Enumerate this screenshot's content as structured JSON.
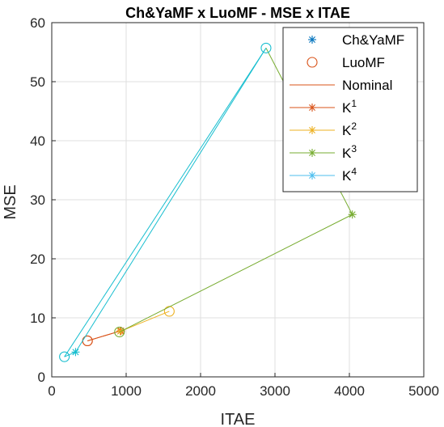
{
  "chart_data": {
    "type": "line",
    "title": "Ch&YaMF x LuoMF - MSE  x ITAE",
    "xlabel": "ITAE",
    "ylabel": "MSE",
    "xlim": [
      0,
      5000
    ],
    "ylim": [
      0,
      60
    ],
    "xticks": [
      "0",
      "1000",
      "2000",
      "3000",
      "4000",
      "5000"
    ],
    "yticks": [
      "0",
      "10",
      "20",
      "30",
      "40",
      "50",
      "60"
    ],
    "grid": true,
    "legend_position": "top-right",
    "legend": [
      {
        "label": "Ch&YaMF",
        "base": "",
        "sup": "",
        "marker": "star",
        "line": false,
        "color": "#0072BD"
      },
      {
        "label": "LuoMF",
        "base": "",
        "sup": "",
        "marker": "circle",
        "line": false,
        "color": "#D95319"
      },
      {
        "label": "Nominal",
        "base": "",
        "sup": "",
        "marker": "none",
        "line": true,
        "color": "#D95319"
      },
      {
        "label": "",
        "base": "K",
        "sup": "1",
        "marker": "star",
        "line": true,
        "color": "#D95319"
      },
      {
        "label": "",
        "base": "K",
        "sup": "2",
        "marker": "star",
        "line": true,
        "color": "#EDB120"
      },
      {
        "label": "",
        "base": "K",
        "sup": "3",
        "marker": "star",
        "line": true,
        "color": "#77AC30"
      },
      {
        "label": "",
        "base": "K",
        "sup": "4",
        "marker": "star",
        "line": true,
        "color": "#4DBEEE"
      }
    ],
    "series": [
      {
        "name": "Nominal",
        "color": "#D95319",
        "star": [
          930,
          7.8
        ],
        "circle": [
          480,
          6.1
        ]
      },
      {
        "name": "K1",
        "color": "#D95319",
        "star": [
          930,
          7.8
        ],
        "circle": [
          480,
          6.1
        ]
      },
      {
        "name": "K2",
        "color": "#EDB120",
        "star": [
          920,
          7.7
        ],
        "circle": [
          1580,
          11.1
        ]
      },
      {
        "name": "K3",
        "color": "#77AC30",
        "star": [
          4040,
          27.5
        ],
        "circle": [
          910,
          7.6
        ],
        "extra_line_to": [
          2880,
          55.7
        ]
      },
      {
        "name": "K4",
        "color": "#17BECF",
        "star": [
          320,
          4.2
        ],
        "circle": [
          170,
          3.4
        ],
        "extra_line_to": [
          2880,
          55.7
        ]
      }
    ],
    "circle_markers": [
      {
        "x": 2880,
        "y": 55.7,
        "color": "#17BECF"
      }
    ]
  }
}
